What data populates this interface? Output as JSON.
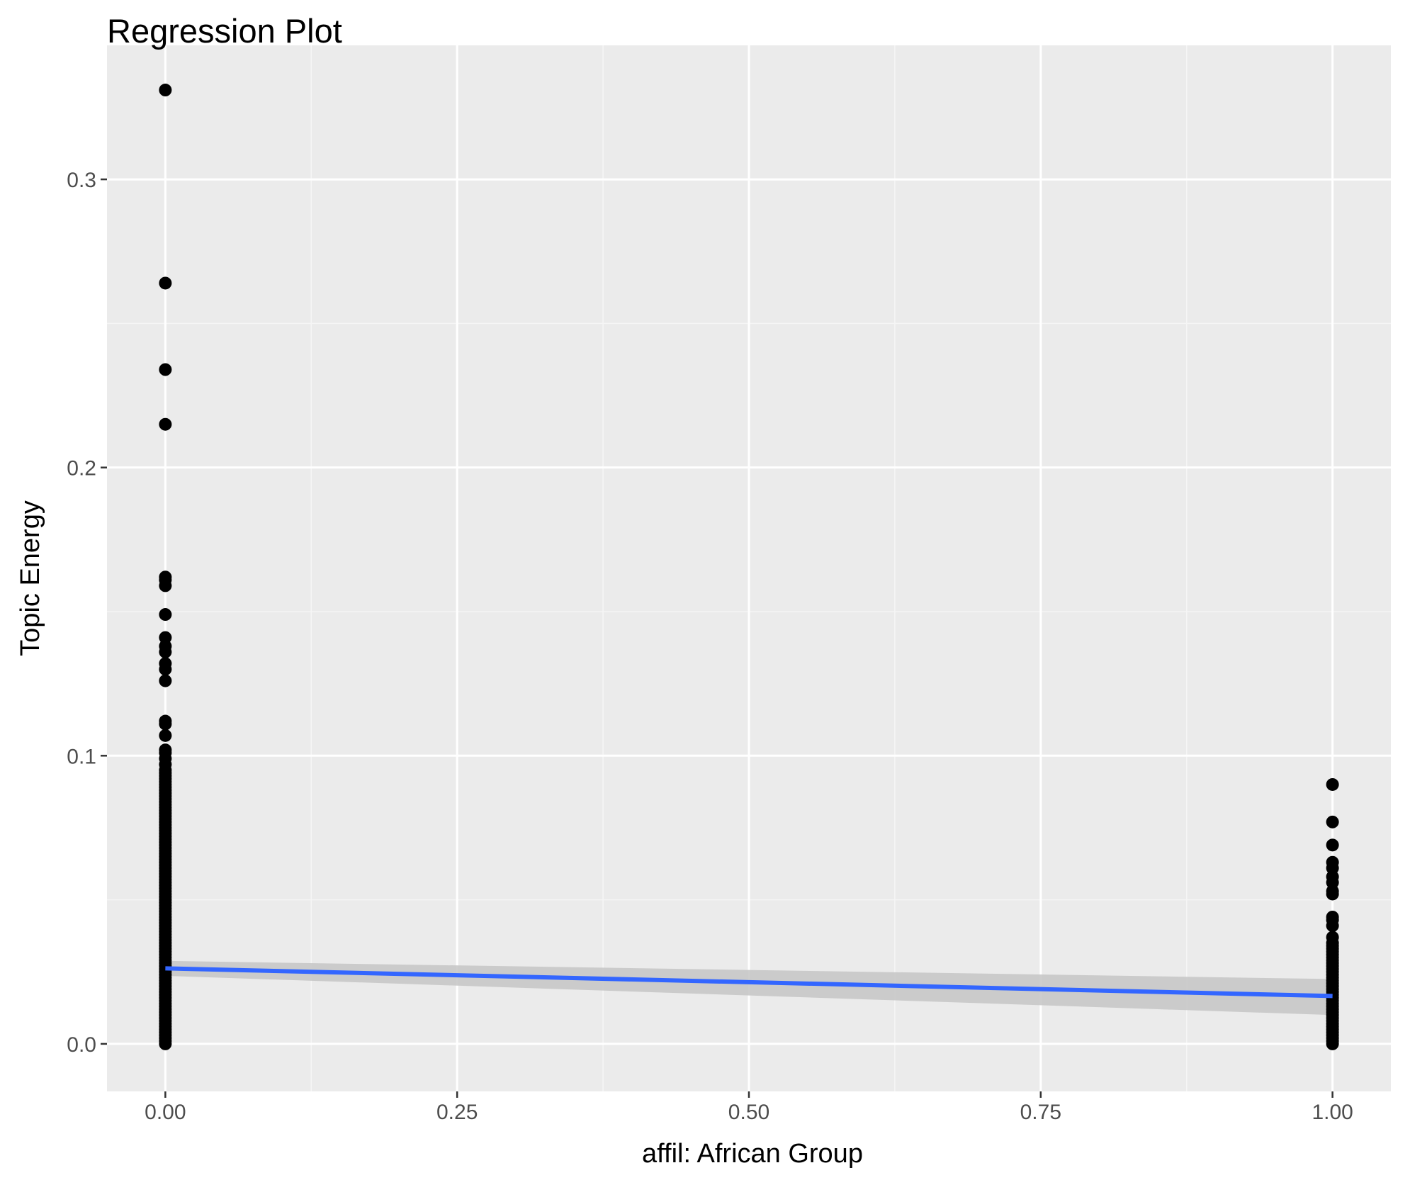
{
  "chart_data": {
    "type": "scatter",
    "title": "Regression Plot",
    "xlabel": "affil: African Group",
    "ylabel": "Topic Energy",
    "xlim": [
      -0.05,
      1.05
    ],
    "ylim": [
      -0.0165,
      0.3465
    ],
    "x_ticks": [
      0.0,
      0.25,
      0.5,
      0.75,
      1.0
    ],
    "x_tick_labels": [
      "0.00",
      "0.25",
      "0.50",
      "0.75",
      "1.00"
    ],
    "y_ticks": [
      0.0,
      0.1,
      0.2,
      0.3
    ],
    "y_tick_labels": [
      "0.0",
      "0.1",
      "0.2",
      "0.3"
    ],
    "grid": true,
    "legend": "none",
    "series": [
      {
        "x": 0,
        "y": [
          0.331,
          0.264,
          0.234,
          0.215,
          0.162,
          0.161,
          0.159,
          0.149,
          0.141,
          0.138,
          0.136,
          0.132,
          0.13,
          0.126,
          0.112,
          0.111,
          0.107,
          0.102,
          0.101,
          0.099,
          0.097,
          0.095,
          0.094,
          0.093,
          0.092,
          0.091,
          0.09,
          0.089,
          0.088,
          0.087,
          0.086,
          0.085,
          0.084,
          0.083,
          0.082,
          0.081,
          0.08,
          0.079,
          0.078,
          0.077,
          0.076,
          0.075,
          0.074,
          0.073,
          0.072,
          0.071,
          0.07,
          0.069,
          0.068,
          0.067,
          0.066,
          0.065,
          0.064,
          0.063,
          0.062,
          0.061,
          0.06,
          0.059,
          0.058,
          0.057,
          0.056,
          0.055,
          0.054,
          0.053,
          0.052,
          0.051,
          0.05,
          0.049,
          0.048,
          0.047,
          0.046,
          0.045,
          0.044,
          0.043,
          0.042,
          0.041,
          0.04,
          0.039,
          0.038,
          0.037,
          0.036,
          0.035,
          0.034,
          0.033,
          0.032,
          0.031,
          0.03,
          0.029,
          0.028,
          0.027,
          0.026,
          0.025,
          0.024,
          0.023,
          0.022,
          0.021,
          0.02,
          0.019,
          0.018,
          0.017,
          0.016,
          0.015,
          0.014,
          0.013,
          0.012,
          0.011,
          0.01,
          0.009,
          0.008,
          0.007,
          0.006,
          0.005,
          0.004,
          0.003,
          0.002,
          0.001,
          0.0
        ]
      },
      {
        "x": 1,
        "y": [
          0.09,
          0.077,
          0.069,
          0.063,
          0.061,
          0.058,
          0.056,
          0.053,
          0.052,
          0.044,
          0.043,
          0.041,
          0.037,
          0.035,
          0.034,
          0.033,
          0.032,
          0.031,
          0.03,
          0.029,
          0.028,
          0.027,
          0.026,
          0.025,
          0.024,
          0.023,
          0.022,
          0.021,
          0.02,
          0.019,
          0.018,
          0.017,
          0.016,
          0.015,
          0.014,
          0.013,
          0.012,
          0.011,
          0.01,
          0.009,
          0.008,
          0.007,
          0.006,
          0.005,
          0.004,
          0.003,
          0.002,
          0.001,
          0.0
        ]
      }
    ],
    "regression": {
      "x": [
        0,
        1
      ],
      "y": [
        0.0262,
        0.0166
      ],
      "ci_lower": [
        0.0236,
        0.01
      ],
      "ci_upper": [
        0.0288,
        0.0225
      ],
      "color": "#3366ff",
      "ci_color": "#c8c8c8"
    },
    "colors": {
      "panel_background": "#ebebeb",
      "grid_major": "#ffffff",
      "grid_minor": "#f5f5f5",
      "points": "#000000"
    }
  }
}
